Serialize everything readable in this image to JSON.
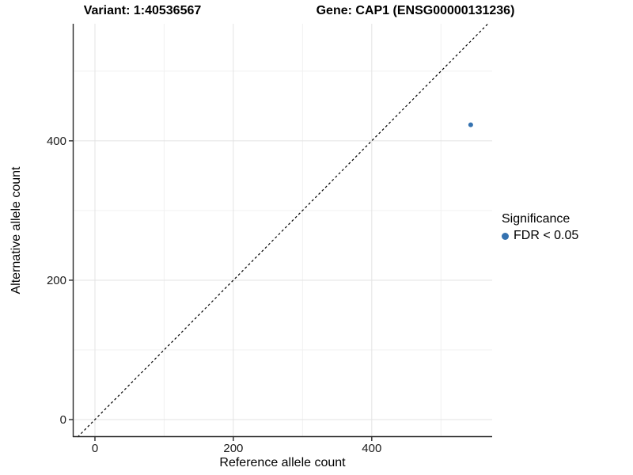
{
  "chart_data": {
    "type": "scatter",
    "titles": {
      "left": "Variant: 1:40536567",
      "right": "Gene: CAP1 (ENSG00000131236)"
    },
    "xlabel": "Reference allele count",
    "ylabel": "Alternative allele count",
    "x_ticks": [
      0,
      200,
      400
    ],
    "y_ticks": [
      0,
      200,
      400
    ],
    "x_minor_ticks": [
      100,
      300,
      500
    ],
    "y_minor_ticks": [
      100,
      300,
      500
    ],
    "xlim": [
      -32,
      574
    ],
    "ylim": [
      -25,
      568
    ],
    "grid": "major+minor",
    "identity_line": {
      "slope": 1,
      "intercept": 0,
      "style": "dashed",
      "color": "#000000"
    },
    "series": [
      {
        "name": "FDR < 0.05",
        "color": "#3572b0",
        "points": [
          {
            "x": 543,
            "y": 423
          }
        ]
      }
    ],
    "legend": {
      "title": "Significance",
      "position": "right",
      "entries": [
        {
          "label": "FDR < 0.05",
          "color": "#3572b0"
        }
      ]
    },
    "colors": {
      "background": "#ffffff",
      "axis_line": "#2a2a2a",
      "grid_major": "#e3e3e3",
      "grid_minor": "#f1f1f1",
      "tick_text": "#1a1a1a"
    }
  }
}
